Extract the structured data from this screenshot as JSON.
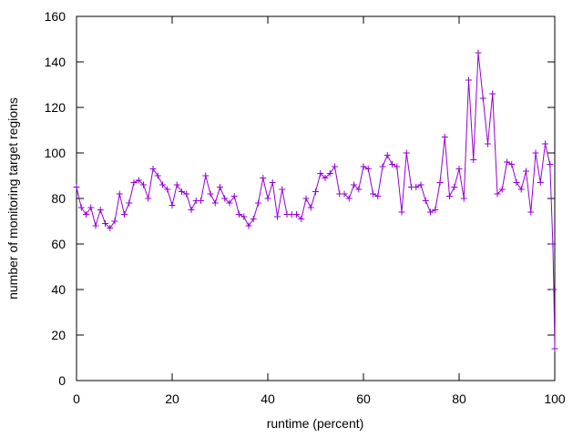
{
  "chart_data": {
    "type": "line",
    "xlabel": "runtime (percent)",
    "ylabel": "number of monitoring target regions",
    "x": [
      0,
      1,
      2,
      3,
      4,
      5,
      6,
      7,
      8,
      9,
      10,
      11,
      12,
      13,
      14,
      15,
      16,
      17,
      18,
      19,
      20,
      21,
      22,
      23,
      24,
      25,
      26,
      27,
      28,
      29,
      30,
      31,
      32,
      33,
      34,
      35,
      36,
      37,
      38,
      39,
      40,
      41,
      42,
      43,
      44,
      45,
      46,
      47,
      48,
      49,
      50,
      51,
      52,
      53,
      54,
      55,
      56,
      57,
      58,
      59,
      60,
      61,
      62,
      63,
      64,
      65,
      66,
      67,
      68,
      69,
      70,
      71,
      72,
      73,
      74,
      75,
      76,
      77,
      78,
      79,
      80,
      81,
      82,
      83,
      84,
      85,
      86,
      87,
      88,
      89,
      90,
      91,
      92,
      93,
      94,
      95,
      96,
      97,
      98,
      99,
      99.6,
      99.8,
      100
    ],
    "series": [
      {
        "color": "#9400d3",
        "values": [
          85,
          76,
          73,
          76,
          68,
          75,
          69,
          67,
          70,
          82,
          73,
          78,
          87,
          88,
          86,
          80,
          93,
          90,
          86,
          84,
          77,
          86,
          83,
          82,
          75,
          79,
          79,
          90,
          82,
          78,
          85,
          80,
          78,
          81,
          73,
          72,
          68,
          71,
          78,
          89,
          80,
          87,
          72,
          84,
          73,
          73,
          73,
          71,
          80,
          76,
          83,
          91,
          89,
          91,
          94,
          82,
          82,
          80,
          86,
          84,
          94,
          93,
          82,
          81,
          94,
          99,
          95,
          94,
          74,
          100,
          85,
          85,
          86,
          79,
          74,
          75,
          87,
          107,
          81,
          85,
          93,
          80,
          132,
          97,
          144,
          124,
          104,
          126,
          82,
          84,
          96,
          95,
          87,
          84,
          92,
          74,
          100,
          87,
          104,
          95,
          60,
          40,
          14
        ]
      }
    ],
    "xlim": [
      0,
      100
    ],
    "xticks": [
      0,
      20,
      40,
      60,
      80,
      100
    ],
    "ylim": [
      0,
      160
    ],
    "yticks": [
      0,
      20,
      40,
      60,
      80,
      100,
      120,
      140,
      160
    ]
  }
}
